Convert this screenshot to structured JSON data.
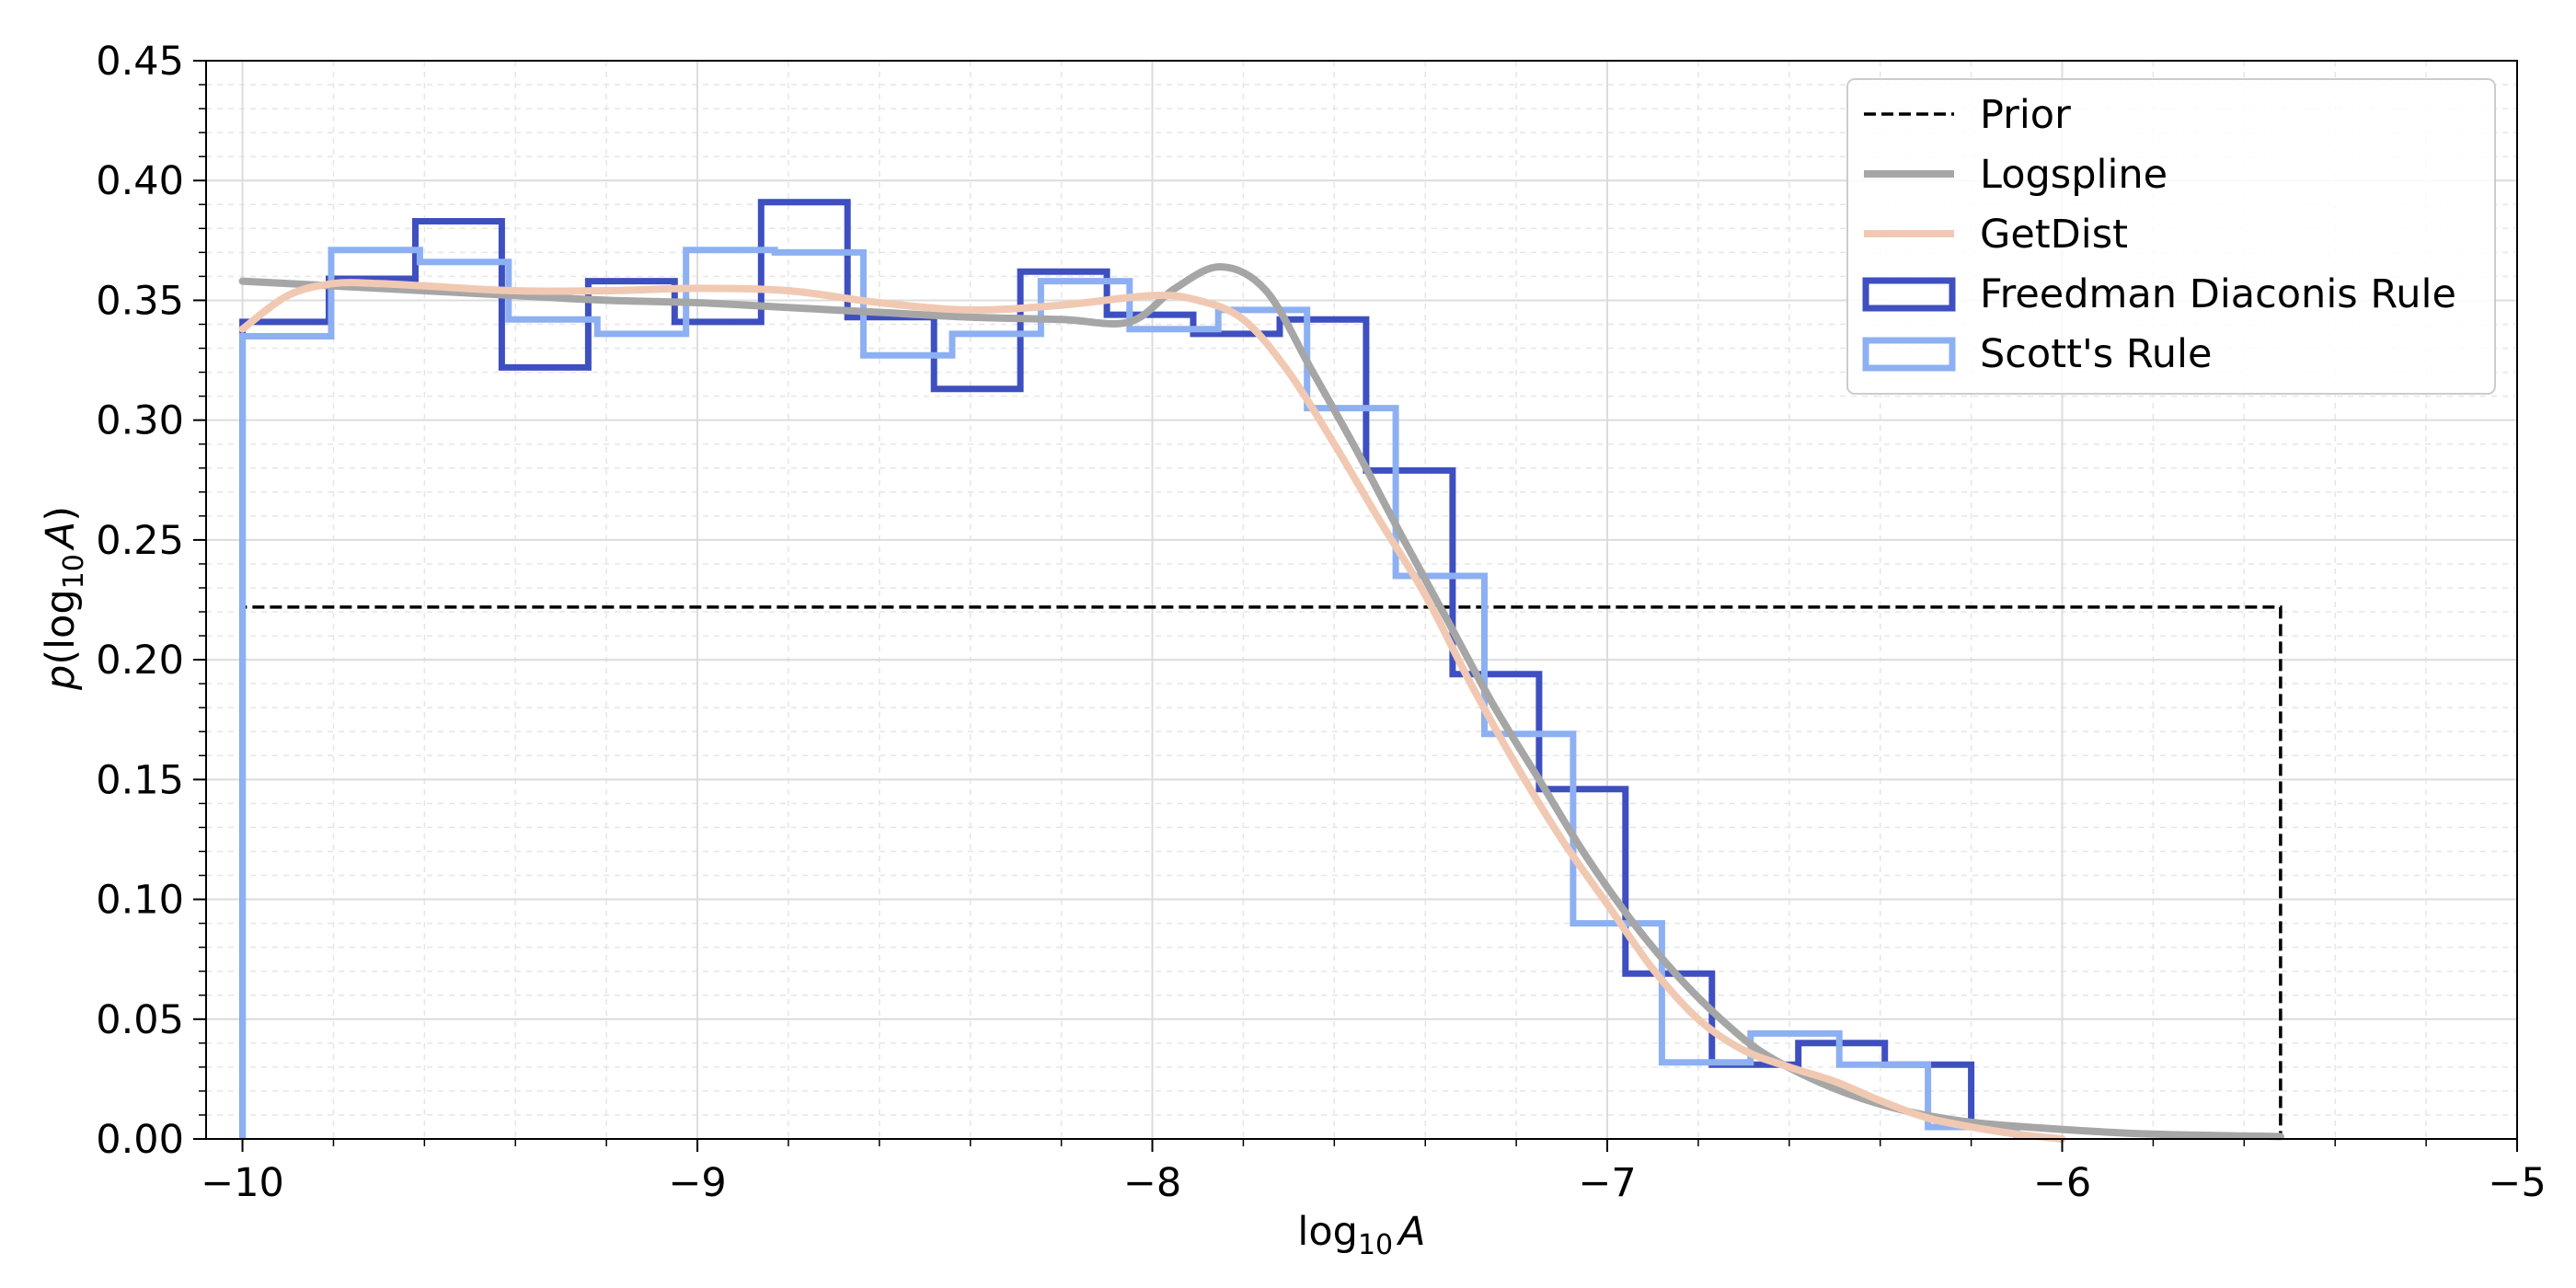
{
  "chart_data": {
    "type": "line",
    "title": "",
    "xlabel": {
      "base": "log",
      "sub": "10",
      "var": "A"
    },
    "ylabel": {
      "p": "p",
      "open": "(log",
      "sub": "10",
      "var": "A",
      "close": ")"
    },
    "xlim": [
      -10.08,
      -5.0
    ],
    "ylim": [
      0.0,
      0.45
    ],
    "x_ticks": [
      -10,
      -9,
      -8,
      -7,
      -6,
      -5
    ],
    "x_tick_labels": [
      "−10",
      "−9",
      "−8",
      "−7",
      "−6",
      "−5"
    ],
    "y_ticks": [
      0.0,
      0.05,
      0.1,
      0.15,
      0.2,
      0.25,
      0.3,
      0.35,
      0.4,
      0.45
    ],
    "y_tick_labels": [
      "0.00",
      "0.05",
      "0.10",
      "0.15",
      "0.20",
      "0.25",
      "0.30",
      "0.35",
      "0.40",
      "0.45"
    ],
    "grid": "major and minor",
    "legend": {
      "position": "top-right",
      "entries": [
        {
          "label": "Prior",
          "style": "dashed",
          "color": "#000000"
        },
        {
          "label": "Logspline",
          "style": "line",
          "color": "#a6a6a6"
        },
        {
          "label": "GetDist",
          "style": "line",
          "color": "#f1c9b3"
        },
        {
          "label": "Freedman Diaconis Rule",
          "style": "step-patch",
          "color": "#3e4fc0"
        },
        {
          "label": "Scott's Rule",
          "style": "step-patch",
          "color": "#8db0f2"
        }
      ]
    },
    "series": [
      {
        "name": "Prior",
        "kind": "step",
        "color": "#000000",
        "x": [
          -10.0,
          -10.0,
          -5.52,
          -5.52
        ],
        "y": [
          0.0,
          0.222,
          0.222,
          0.0
        ]
      },
      {
        "name": "Freedman Diaconis Rule",
        "kind": "histogram",
        "color": "#3e4fc0",
        "edges": [
          -10.0,
          -9.81,
          -9.62,
          -9.43,
          -9.24,
          -9.05,
          -8.86,
          -8.67,
          -8.48,
          -8.29,
          -8.1,
          -7.91,
          -7.72,
          -7.53,
          -7.34,
          -7.15,
          -6.96,
          -6.77,
          -6.58,
          -6.39,
          -6.2
        ],
        "heights": [
          0.341,
          0.359,
          0.383,
          0.322,
          0.358,
          0.341,
          0.391,
          0.343,
          0.313,
          0.362,
          0.344,
          0.336,
          0.342,
          0.279,
          0.194,
          0.146,
          0.069,
          0.031,
          0.04,
          0.031,
          0.004
        ]
      },
      {
        "name": "Scott's Rule",
        "kind": "histogram",
        "color": "#8db0f2",
        "edges": [
          -10.0,
          -9.805,
          -9.61,
          -9.415,
          -9.22,
          -9.025,
          -8.83,
          -8.635,
          -8.44,
          -8.245,
          -8.05,
          -7.855,
          -7.66,
          -7.465,
          -7.27,
          -7.075,
          -6.88,
          -6.685,
          -6.49,
          -6.295,
          -6.1
        ],
        "heights": [
          0.335,
          0.371,
          0.366,
          0.342,
          0.336,
          0.371,
          0.37,
          0.327,
          0.336,
          0.358,
          0.338,
          0.346,
          0.305,
          0.235,
          0.169,
          0.09,
          0.032,
          0.044,
          0.031,
          0.005,
          0.0
        ]
      },
      {
        "name": "Logspline",
        "kind": "line",
        "color": "#a6a6a6",
        "x": [
          -10.0,
          -9.8,
          -9.6,
          -9.4,
          -9.2,
          -9.0,
          -8.8,
          -8.6,
          -8.4,
          -8.2,
          -8.05,
          -7.95,
          -7.85,
          -7.75,
          -7.65,
          -7.55,
          -7.45,
          -7.35,
          -7.25,
          -7.15,
          -7.05,
          -6.95,
          -6.85,
          -6.75,
          -6.65,
          -6.5,
          -6.35,
          -6.2,
          -6.0,
          -5.8,
          -5.52
        ],
        "y": [
          0.358,
          0.356,
          0.354,
          0.352,
          0.35,
          0.349,
          0.347,
          0.345,
          0.343,
          0.342,
          0.341,
          0.355,
          0.364,
          0.354,
          0.321,
          0.287,
          0.251,
          0.216,
          0.181,
          0.15,
          0.119,
          0.092,
          0.069,
          0.05,
          0.035,
          0.021,
          0.012,
          0.007,
          0.004,
          0.002,
          0.001
        ]
      },
      {
        "name": "GetDist",
        "kind": "line",
        "color": "#f1c9b3",
        "x": [
          -10.0,
          -9.9,
          -9.8,
          -9.7,
          -9.6,
          -9.4,
          -9.2,
          -9.0,
          -8.8,
          -8.6,
          -8.4,
          -8.2,
          -8.0,
          -7.9,
          -7.8,
          -7.7,
          -7.6,
          -7.5,
          -7.4,
          -7.3,
          -7.2,
          -7.1,
          -7.0,
          -6.9,
          -6.8,
          -6.7,
          -6.6,
          -6.5,
          -6.4,
          -6.3,
          -6.2,
          -6.1,
          -6.0
        ],
        "y": [
          0.338,
          0.352,
          0.357,
          0.357,
          0.356,
          0.354,
          0.354,
          0.355,
          0.354,
          0.349,
          0.346,
          0.348,
          0.352,
          0.35,
          0.342,
          0.32,
          0.29,
          0.258,
          0.227,
          0.19,
          0.156,
          0.125,
          0.098,
          0.071,
          0.05,
          0.037,
          0.03,
          0.024,
          0.016,
          0.009,
          0.005,
          0.002,
          0.0
        ]
      }
    ]
  }
}
